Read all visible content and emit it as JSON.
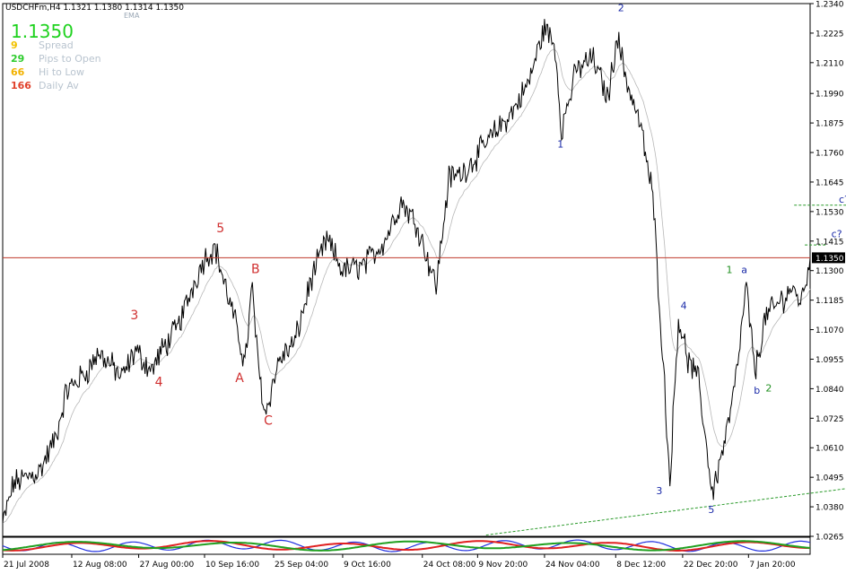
{
  "header": {
    "symbol_line": "USDCHFm,H4  1.1321 1.1380 1.1314 1.1350",
    "ema_label": "EMA"
  },
  "hud": {
    "price": "1.1350",
    "stats": [
      {
        "value": "9",
        "label": "Spread",
        "color": "#f2c200"
      },
      {
        "value": "29",
        "label": "Pips to Open",
        "color": "#2ecc2e"
      },
      {
        "value": "66",
        "label": "Hi to Low",
        "color": "#f2b200"
      },
      {
        "value": "166",
        "label": "Daily Av",
        "color": "#e0402a"
      }
    ]
  },
  "colors": {
    "price_line": "#000000",
    "current_price_line": "#c0392b",
    "current_price_badge": "#000000",
    "wave_red": "#d03030",
    "wave_blue": "#1a2aa8",
    "wave_green": "#1f8f1f",
    "trendline": "#2a9a2a",
    "osc_blue": "#2030e0",
    "osc_red": "#e02020",
    "osc_green": "#20a020"
  },
  "chart_data": {
    "type": "line",
    "title": "USDCHFm,H4",
    "ohlc_current": {
      "open": 1.1321,
      "high": 1.138,
      "low": 1.1314,
      "close": 1.135
    },
    "current_price": 1.135,
    "current_price_label": "1.1350",
    "y_ticks": [
      "1.2340",
      "1.2225",
      "1.2110",
      "1.1990",
      "1.1875",
      "1.1760",
      "1.1645",
      "1.1530",
      "1.1415",
      "1.1300",
      "1.1185",
      "1.1070",
      "1.0955",
      "1.0840",
      "1.0725",
      "1.0610",
      "1.0495",
      "1.0380",
      "1.0265"
    ],
    "ylim": [
      1.0265,
      1.234
    ],
    "x_ticks": [
      "21 Jul 2008",
      "12 Aug 08:00",
      "27 Aug 00:00",
      "10 Sep 16:00",
      "25 Sep 04:00",
      "9 Oct 16:00",
      "24 Oct 08:00",
      "9 Nov 20:00",
      "24 Nov 04:00",
      "8 Dec 12:00",
      "22 Dec 20:00",
      "7 Jan 20:00"
    ],
    "x_tick_index": [
      0,
      65,
      128,
      190,
      255,
      320,
      395,
      447,
      510,
      577,
      640,
      702
    ],
    "n_bars": 760,
    "series": [
      {
        "anchors": [
          [
            0,
            1.031
          ],
          [
            10,
            1.047
          ],
          [
            35,
            1.052
          ],
          [
            50,
            1.065
          ],
          [
            60,
            1.083
          ],
          [
            80,
            1.091
          ],
          [
            90,
            1.098
          ],
          [
            105,
            1.092
          ],
          [
            112,
            1.088
          ],
          [
            125,
            1.099
          ],
          [
            140,
            1.091
          ],
          [
            150,
            1.099
          ],
          [
            165,
            1.108
          ],
          [
            180,
            1.125
          ],
          [
            190,
            1.135
          ],
          [
            200,
            1.139
          ],
          [
            210,
            1.123
          ],
          [
            220,
            1.108
          ],
          [
            228,
            1.094
          ],
          [
            235,
            1.124
          ],
          [
            240,
            1.095
          ],
          [
            247,
            1.074
          ],
          [
            260,
            1.095
          ],
          [
            275,
            1.102
          ],
          [
            290,
            1.126
          ],
          [
            305,
            1.142
          ],
          [
            320,
            1.13
          ],
          [
            340,
            1.132
          ],
          [
            360,
            1.142
          ],
          [
            375,
            1.157
          ],
          [
            390,
            1.148
          ],
          [
            408,
            1.124
          ],
          [
            420,
            1.166
          ],
          [
            432,
            1.168
          ],
          [
            445,
            1.174
          ],
          [
            460,
            1.182
          ],
          [
            480,
            1.192
          ],
          [
            495,
            1.203
          ],
          [
            510,
            1.225
          ],
          [
            520,
            1.217
          ],
          [
            526,
            1.185
          ],
          [
            540,
            1.208
          ],
          [
            555,
            1.213
          ],
          [
            570,
            1.197
          ],
          [
            578,
            1.222
          ],
          [
            588,
            1.203
          ],
          [
            600,
            1.187
          ],
          [
            612,
            1.159
          ],
          [
            622,
            1.092
          ],
          [
            628,
            1.048
          ],
          [
            636,
            1.112
          ],
          [
            645,
            1.095
          ],
          [
            655,
            1.087
          ],
          [
            668,
            1.043
          ],
          [
            682,
            1.068
          ],
          [
            690,
            1.087
          ],
          [
            700,
            1.124
          ],
          [
            708,
            1.09
          ],
          [
            718,
            1.112
          ],
          [
            730,
            1.117
          ],
          [
            742,
            1.123
          ],
          [
            752,
            1.118
          ],
          [
            760,
            1.135
          ]
        ]
      }
    ],
    "wave_labels": [
      {
        "text": "3",
        "i": 124,
        "v": 1.111,
        "color": "wave_red"
      },
      {
        "text": "4",
        "i": 147,
        "v": 1.085,
        "color": "wave_red"
      },
      {
        "text": "5",
        "i": 205,
        "v": 1.145,
        "color": "wave_red"
      },
      {
        "text": "B",
        "i": 238,
        "v": 1.129,
        "color": "wave_red"
      },
      {
        "text": "A",
        "i": 223,
        "v": 1.0865,
        "color": "wave_red"
      },
      {
        "text": "C",
        "i": 250,
        "v": 1.07,
        "color": "wave_red"
      },
      {
        "text": "1",
        "i": 525,
        "v": 1.178,
        "color": "wave_blue"
      },
      {
        "text": "2",
        "i": 582,
        "v": 1.231,
        "color": "wave_blue"
      },
      {
        "text": "3",
        "i": 618,
        "v": 1.043,
        "color": "wave_blue"
      },
      {
        "text": "4",
        "i": 641,
        "v": 1.115,
        "color": "wave_blue"
      },
      {
        "text": "5",
        "i": 667,
        "v": 1.0355,
        "color": "wave_blue"
      },
      {
        "text": "a",
        "i": 698,
        "v": 1.129,
        "color": "wave_blue"
      },
      {
        "text": "b",
        "i": 710,
        "v": 1.082,
        "color": "wave_blue"
      },
      {
        "text": "c?",
        "i": 792,
        "v": 1.1565,
        "color": "wave_blue"
      },
      {
        "text": "c?",
        "i": 785,
        "v": 1.143,
        "color": "wave_blue"
      },
      {
        "text": "1",
        "i": 684,
        "v": 1.129,
        "color": "wave_green"
      },
      {
        "text": "2",
        "i": 721,
        "v": 1.083,
        "color": "wave_green"
      }
    ],
    "trendline": {
      "start": [
        455,
        1.027
      ],
      "end": [
        905,
        1.051
      ]
    },
    "target_lines": [
      {
        "from": 745,
        "to": 825,
        "v": 1.1555
      },
      {
        "from": 755,
        "to": 775,
        "v": 1.14
      }
    ],
    "oscillator": {
      "type": "histogram-lines",
      "ylim": [
        -1,
        1
      ]
    }
  }
}
